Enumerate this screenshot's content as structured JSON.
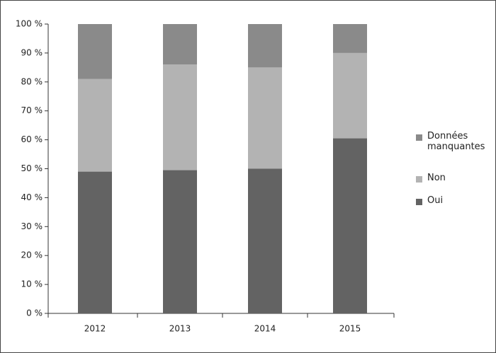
{
  "chart_data": {
    "type": "stacked_bar",
    "categories": [
      "2012",
      "2013",
      "2014",
      "2015"
    ],
    "series": [
      {
        "name": "Oui",
        "color": "#636363",
        "values": [
          49,
          49.5,
          50,
          60.5
        ]
      },
      {
        "name": "Non",
        "color": "#b3b3b3",
        "values": [
          32,
          36.5,
          35,
          29.5
        ]
      },
      {
        "name": "Données manquantes",
        "color": "#8a8a8a",
        "values": [
          19,
          14,
          15,
          10
        ]
      }
    ],
    "ylim": [
      0,
      100
    ],
    "yticks": [
      {
        "value": 0,
        "label": "0 %"
      },
      {
        "value": 10,
        "label": "10 %"
      },
      {
        "value": 20,
        "label": "20 %"
      },
      {
        "value": 30,
        "label": "30 %"
      },
      {
        "value": 40,
        "label": "40 %"
      },
      {
        "value": 50,
        "label": "50 %"
      },
      {
        "value": 60,
        "label": "60 %"
      },
      {
        "value": 70,
        "label": "70 %"
      },
      {
        "value": 80,
        "label": "80 %"
      },
      {
        "value": 90,
        "label": "90 %"
      },
      {
        "value": 100,
        "label": "100 %"
      }
    ],
    "legend": "right"
  }
}
